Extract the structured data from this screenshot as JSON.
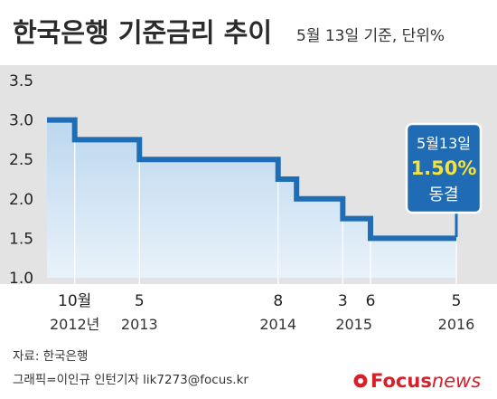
{
  "header": {
    "title": "한국은행 기준금리 추이",
    "subtitle": "5월 13일 기준, 단위%"
  },
  "callout": {
    "date": "5월13일",
    "value": "1.50%",
    "status": "동결"
  },
  "footer": {
    "source": "자료: 한국은행",
    "credit": "그래픽=이인규 인턴기자 lik7273@focus.kr",
    "logo_text": "Focusnews"
  },
  "colors": {
    "line": "#1e6db5",
    "fill_top": "#bcd7ef",
    "fill_bottom": "#e9f2fa",
    "callout_bg": "#1f6bb4",
    "callout_value": "#f6e23c",
    "background_band": "#e3e3e3",
    "logo_red": "#d7202a"
  },
  "chart_data": {
    "type": "line",
    "step": true,
    "title": "한국은행 기준금리 추이",
    "subtitle": "5월 13일 기준, 단위%",
    "ylim": [
      1.0,
      3.5
    ],
    "yticks": [
      "1.0",
      "1.5",
      "2.0",
      "2.5",
      "3.0",
      "3.5"
    ],
    "series": [
      {
        "x": [
          "2012-07",
          "2012-10",
          "2013-05",
          "2014-08",
          "2014-10",
          "2015-03",
          "2015-06",
          "2016-05"
        ],
        "values": [
          3.0,
          2.75,
          2.5,
          2.25,
          2.0,
          1.75,
          1.5,
          1.5
        ]
      }
    ],
    "x_month_labels": [
      "10월",
      "5",
      "8",
      "3",
      "6",
      "5"
    ],
    "x_year_labels": [
      "2012년",
      "2013",
      "2014",
      "2015",
      "2016"
    ],
    "annotation": {
      "date": "5월13일",
      "value": "1.50%",
      "status": "동결"
    },
    "grid": false
  }
}
